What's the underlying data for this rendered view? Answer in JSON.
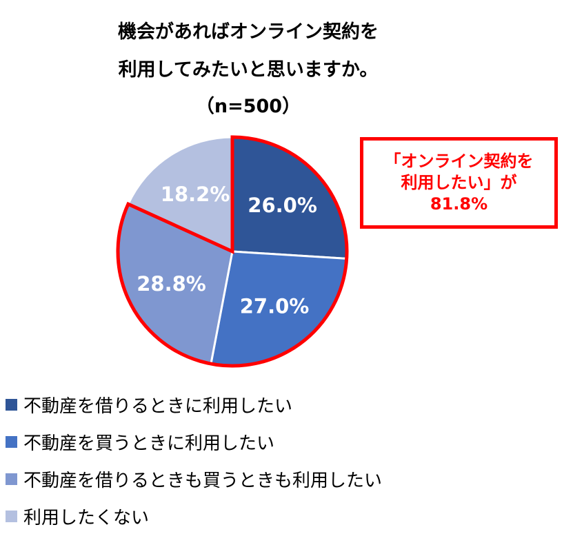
{
  "title": {
    "line1": "機会があればオンライン契約を",
    "line2": "利用してみたいと思いますか。",
    "line3": "（n=500）"
  },
  "callout": {
    "line1": "「オンライン契約を",
    "line2": "利用したい」が",
    "line3": "81.8%"
  },
  "chart_data": {
    "type": "pie",
    "title": "機会があればオンライン契約を利用してみたいと思いますか。（n=500）",
    "categories": [
      "不動産を借りるときに利用したい",
      "不動産を買うときに利用したい",
      "不動産を借りるときも買うときも利用したい",
      "利用したくない"
    ],
    "values": [
      26.0,
      27.0,
      28.8,
      18.2
    ],
    "labels": [
      "26.0%",
      "27.0%",
      "28.8%",
      "18.2%"
    ],
    "colors": [
      "#2f5597",
      "#4472c4",
      "#7f97d0",
      "#b4c0e0"
    ],
    "highlight_color": "#ff0000",
    "legend_position": "bottom"
  }
}
